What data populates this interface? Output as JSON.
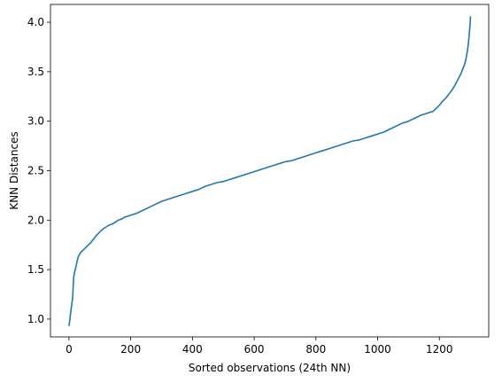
{
  "chart_data": {
    "type": "line",
    "title": "",
    "xlabel": "Sorted observations (24th NN)",
    "ylabel": "KNN Distances",
    "xlim": [
      -60,
      1360
    ],
    "ylim": [
      0.82,
      4.18
    ],
    "xticks": [
      0,
      200,
      400,
      600,
      800,
      1000,
      1200
    ],
    "xtick_labels": [
      "0",
      "200",
      "400",
      "600",
      "800",
      "1000",
      "1200"
    ],
    "yticks": [
      1.0,
      1.5,
      2.0,
      2.5,
      3.0,
      3.5,
      4.0
    ],
    "ytick_labels": [
      "1.0",
      "1.5",
      "2.0",
      "2.5",
      "3.0",
      "3.5",
      "4.0"
    ],
    "grid": false,
    "legend": "none",
    "line_color": "#1f77b4",
    "series": [
      {
        "x": [
          0,
          3,
          6,
          9,
          12,
          15,
          18,
          22,
          26,
          30,
          35,
          40,
          50,
          60,
          70,
          80,
          90,
          100,
          110,
          120,
          130,
          140,
          150,
          160,
          170,
          180,
          190,
          200,
          220,
          240,
          260,
          280,
          300,
          320,
          340,
          360,
          380,
          400,
          420,
          440,
          460,
          480,
          500,
          520,
          540,
          560,
          580,
          600,
          620,
          640,
          660,
          680,
          700,
          720,
          740,
          760,
          780,
          800,
          820,
          840,
          860,
          880,
          900,
          920,
          940,
          960,
          980,
          1000,
          1020,
          1040,
          1060,
          1080,
          1100,
          1120,
          1140,
          1160,
          1180,
          1190,
          1200,
          1210,
          1220,
          1230,
          1240,
          1250,
          1260,
          1270,
          1275,
          1280,
          1285,
          1288,
          1291,
          1294,
          1296,
          1298,
          1300,
          1301
        ],
        "y": [
          0.93,
          1.0,
          1.08,
          1.15,
          1.22,
          1.42,
          1.47,
          1.52,
          1.58,
          1.63,
          1.66,
          1.68,
          1.71,
          1.74,
          1.77,
          1.81,
          1.85,
          1.88,
          1.91,
          1.93,
          1.95,
          1.96,
          1.98,
          2.0,
          2.01,
          2.03,
          2.04,
          2.05,
          2.07,
          2.1,
          2.13,
          2.16,
          2.19,
          2.21,
          2.23,
          2.25,
          2.27,
          2.29,
          2.31,
          2.34,
          2.36,
          2.38,
          2.39,
          2.41,
          2.43,
          2.45,
          2.47,
          2.49,
          2.51,
          2.53,
          2.55,
          2.57,
          2.59,
          2.6,
          2.62,
          2.64,
          2.66,
          2.68,
          2.7,
          2.72,
          2.74,
          2.76,
          2.78,
          2.8,
          2.81,
          2.83,
          2.85,
          2.87,
          2.89,
          2.92,
          2.95,
          2.98,
          3.0,
          3.03,
          3.06,
          3.08,
          3.1,
          3.13,
          3.16,
          3.2,
          3.23,
          3.27,
          3.31,
          3.36,
          3.42,
          3.48,
          3.52,
          3.56,
          3.61,
          3.66,
          3.71,
          3.78,
          3.85,
          3.92,
          3.99,
          4.06
        ]
      }
    ]
  }
}
